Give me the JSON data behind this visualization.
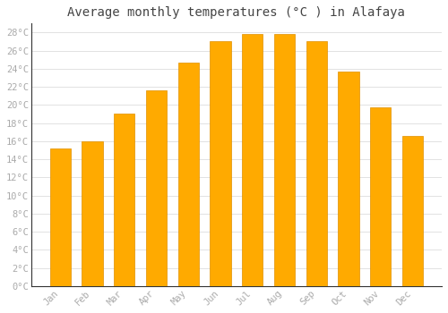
{
  "title": "Average monthly temperatures (°C ) in Alafaya",
  "months": [
    "Jan",
    "Feb",
    "Mar",
    "Apr",
    "May",
    "Jun",
    "Jul",
    "Aug",
    "Sep",
    "Oct",
    "Nov",
    "Dec"
  ],
  "values": [
    15.2,
    16.0,
    19.1,
    21.6,
    24.7,
    27.1,
    27.8,
    27.8,
    27.1,
    23.7,
    19.7,
    16.6
  ],
  "bar_color_top": "#FFC200",
  "bar_color_bottom": "#FFAA00",
  "bar_edge_color": "#E09000",
  "ylim": [
    0,
    29
  ],
  "ytick_values": [
    0,
    2,
    4,
    6,
    8,
    10,
    12,
    14,
    16,
    18,
    20,
    22,
    24,
    26,
    28
  ],
  "background_color": "#ffffff",
  "plot_bg_color": "#ffffff",
  "grid_color": "#dddddd",
  "title_fontsize": 10,
  "tick_fontsize": 7.5,
  "font_family": "monospace",
  "tick_color": "#aaaaaa",
  "spine_color": "#333333"
}
